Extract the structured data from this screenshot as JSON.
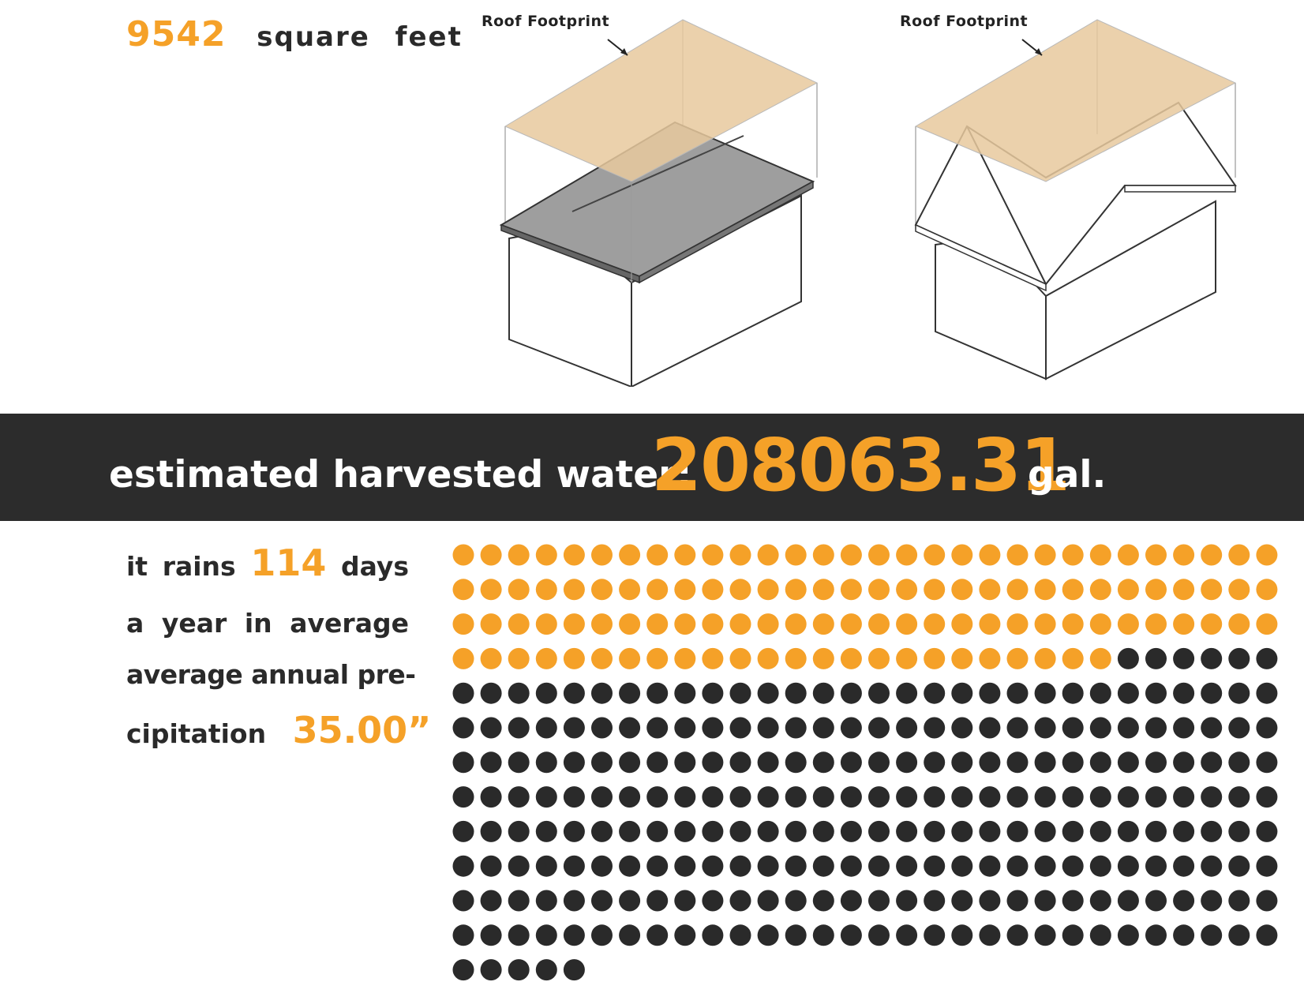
{
  "area": {
    "value": "9542",
    "unit": "square feet"
  },
  "houses": [
    {
      "label": "Roof Footprint",
      "style": "gable"
    },
    {
      "label": "Roof Footprint",
      "style": "gable-outline"
    }
  ],
  "banner": {
    "label": "estimated harvested water:",
    "value": "208063.31",
    "unit": "gal."
  },
  "rain": {
    "line1_pre": "it",
    "line1_word": "rains",
    "days": "114",
    "line1_post": "days",
    "line2": [
      "a",
      "year",
      "in",
      "average"
    ],
    "line3": "average annual pre-",
    "line4_pre": "cipitation",
    "precipitation": "35.00”"
  },
  "dots": {
    "total": 365,
    "highlighted": 114,
    "per_row": 30,
    "highlight_color": "#f5a128",
    "base_color": "#2a2a2a"
  },
  "colors": {
    "accent": "#f5a128",
    "banner": "#2c2c2c",
    "roof_fill": "#e8c99e",
    "roof_dark": "#8a8a8a"
  }
}
